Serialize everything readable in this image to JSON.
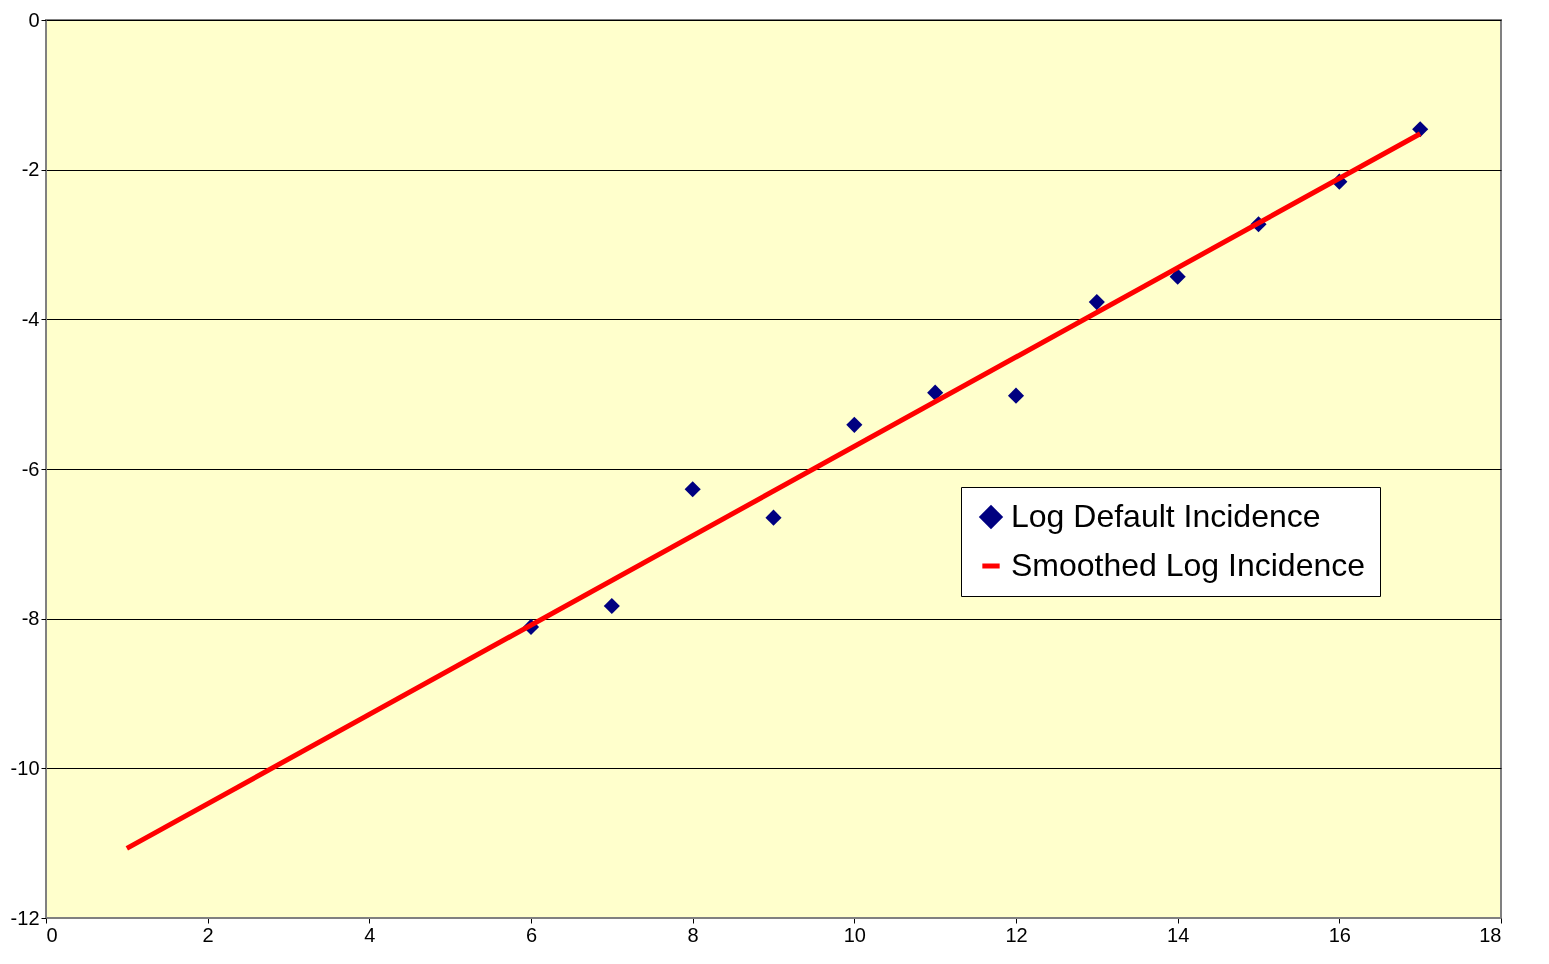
{
  "chart_data": {
    "type": "scatter",
    "series": [
      {
        "name": "Log Default Incidence",
        "color": "#000080",
        "marker": "diamond",
        "x": [
          6,
          7,
          8,
          9,
          10,
          11,
          12,
          13,
          14,
          15,
          16,
          17
        ],
        "values": [
          -8.11,
          -7.83,
          -6.27,
          -6.65,
          -5.41,
          -4.98,
          -5.02,
          -3.77,
          -3.43,
          -2.73,
          -2.16,
          -1.46
        ]
      },
      {
        "name": "Smoothed Log Incidence",
        "type": "line",
        "color": "#ff0000",
        "marker": "none",
        "line_style": "solid",
        "x": [
          1,
          17
        ],
        "values": [
          -11.07,
          -1.52
        ]
      }
    ],
    "xlim": [
      0,
      18
    ],
    "xticks": [
      0,
      2,
      4,
      6,
      8,
      10,
      12,
      14,
      16,
      18
    ],
    "ylim": [
      -12,
      0
    ],
    "yticks": [
      -12,
      -10,
      -8,
      -6,
      -4,
      -2,
      0
    ],
    "grid": "y",
    "legend": "right"
  }
}
